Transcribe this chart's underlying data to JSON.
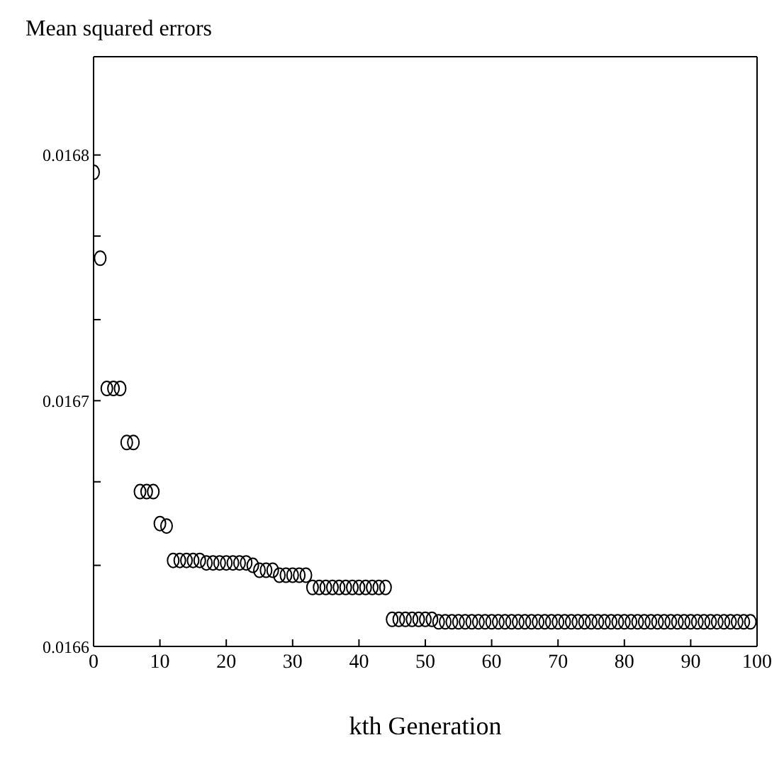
{
  "chart_data": {
    "type": "scatter",
    "title": "Mean squared errors",
    "xlabel": "kth Generation",
    "x": [
      0,
      1,
      2,
      3,
      4,
      5,
      6,
      7,
      8,
      9,
      10,
      11,
      12,
      13,
      14,
      15,
      16,
      17,
      18,
      19,
      20,
      21,
      22,
      23,
      24,
      25,
      26,
      27,
      28,
      29,
      30,
      31,
      32,
      33,
      34,
      35,
      36,
      37,
      38,
      39,
      40,
      41,
      42,
      43,
      44,
      45,
      46,
      47,
      48,
      49,
      50,
      51,
      52,
      53,
      54,
      55,
      56,
      57,
      58,
      59,
      60,
      61,
      62,
      63,
      64,
      65,
      66,
      67,
      68,
      69,
      70,
      71,
      72,
      73,
      74,
      75,
      76,
      77,
      78,
      79,
      80,
      81,
      82,
      83,
      84,
      85,
      86,
      87,
      88,
      89,
      90,
      91,
      92,
      93,
      94,
      95,
      96,
      97,
      98,
      99
    ],
    "series": [
      {
        "color": "#000000",
        "values": [
          0.016793,
          0.016758,
          0.016705,
          0.016705,
          0.016705,
          0.016683,
          0.016683,
          0.016663,
          0.016663,
          0.016663,
          0.01665,
          0.016649,
          0.016635,
          0.016635,
          0.016635,
          0.016635,
          0.016635,
          0.016634,
          0.016634,
          0.016634,
          0.016634,
          0.016634,
          0.016634,
          0.016634,
          0.016633,
          0.016631,
          0.016631,
          0.016631,
          0.016629,
          0.016629,
          0.016629,
          0.016629,
          0.016629,
          0.016624,
          0.016624,
          0.016624,
          0.016624,
          0.016624,
          0.016624,
          0.016624,
          0.016624,
          0.016624,
          0.016624,
          0.016624,
          0.016624,
          0.016611,
          0.016611,
          0.016611,
          0.016611,
          0.016611,
          0.016611,
          0.016611,
          0.01661,
          0.01661,
          0.01661,
          0.01661,
          0.01661,
          0.01661,
          0.01661,
          0.01661,
          0.01661,
          0.01661,
          0.01661,
          0.01661,
          0.01661,
          0.01661,
          0.01661,
          0.01661,
          0.01661,
          0.01661,
          0.01661,
          0.01661,
          0.01661,
          0.01661,
          0.01661,
          0.01661,
          0.01661,
          0.01661,
          0.01661,
          0.01661,
          0.01661,
          0.01661,
          0.01661,
          0.01661,
          0.01661,
          0.01661,
          0.01661,
          0.01661,
          0.01661,
          0.01661,
          0.01661,
          0.01661,
          0.01661,
          0.01661,
          0.01661,
          0.01661,
          0.01661,
          0.01661,
          0.01661,
          0.01661
        ]
      }
    ],
    "marker": "circle",
    "legend": false,
    "xlim": [
      0,
      100
    ],
    "xticks": [
      0,
      10,
      20,
      30,
      40,
      50,
      60,
      70,
      80,
      90,
      100
    ],
    "ylim": [
      0.0166,
      0.01684
    ],
    "yticks": [
      0.0166,
      {
        "value": 0.016633,
        "label": null
      },
      {
        "value": 0.016667,
        "label": null
      },
      0.0167,
      {
        "value": 0.016733,
        "label": null
      },
      {
        "value": 0.016767,
        "label": null
      },
      0.0168
    ]
  }
}
